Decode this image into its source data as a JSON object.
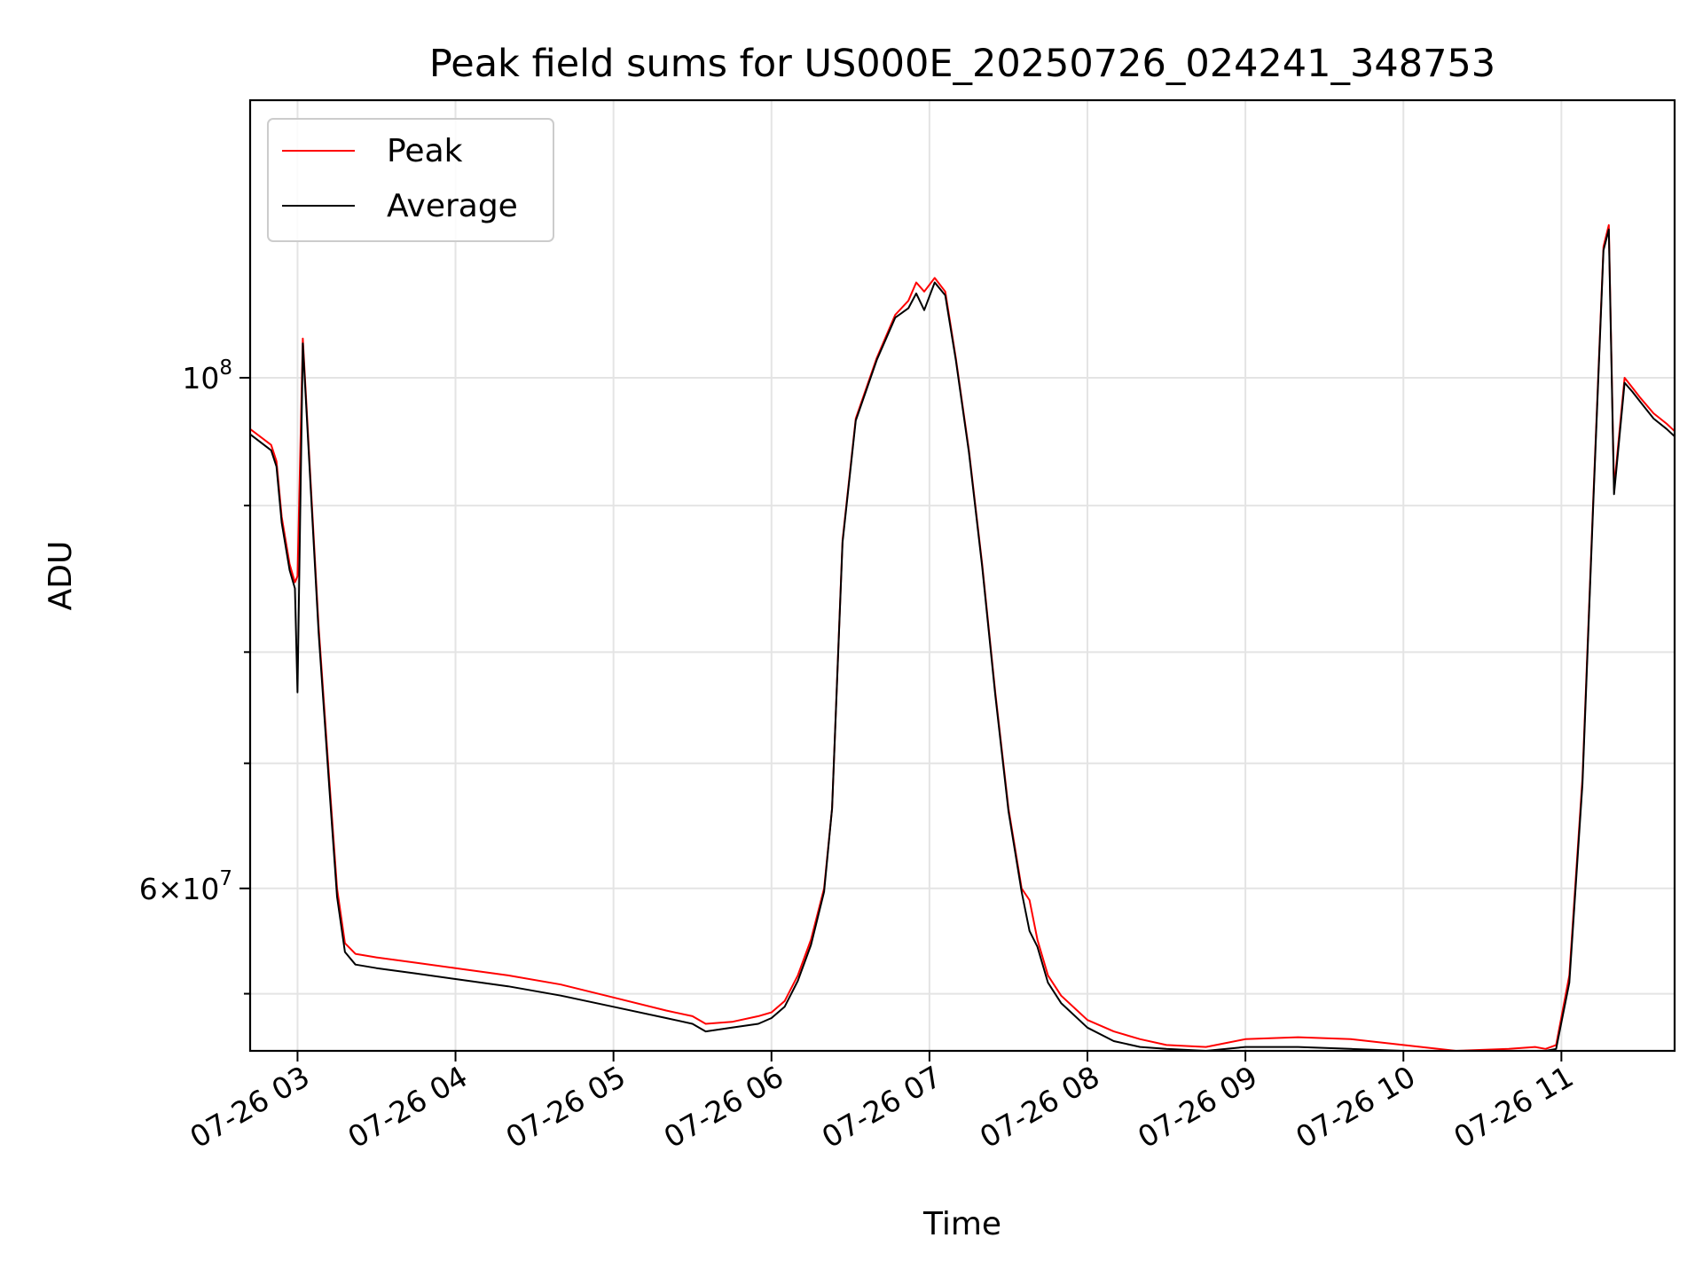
{
  "chart_data": {
    "type": "line",
    "title": "Peak field sums for US000E_20250726_024241_348753",
    "xlabel": "Time",
    "ylabel": "ADU",
    "x_scale": "time",
    "y_scale": "log",
    "xlim": [
      "2025-07-26 02:42",
      "2025-07-26 11:43"
    ],
    "ylim": [
      51000000,
      132000000
    ],
    "x_ticks": [
      "07-26 03",
      "07-26 04",
      "07-26 05",
      "07-26 06",
      "07-26 07",
      "07-26 08",
      "07-26 09",
      "07-26 10",
      "07-26 11"
    ],
    "x_tick_times": [
      "2025-07-26 03:00",
      "2025-07-26 04:00",
      "2025-07-26 05:00",
      "2025-07-26 06:00",
      "2025-07-26 07:00",
      "2025-07-26 08:00",
      "2025-07-26 09:00",
      "2025-07-26 10:00",
      "2025-07-26 11:00"
    ],
    "y_major_ticks": [
      {
        "value": 100000000,
        "label_base": "10",
        "label_exp": "8"
      },
      {
        "value": 60000000,
        "label_base": "6×10",
        "label_exp": "7"
      }
    ],
    "y_minor_ticks": [
      54000000,
      68000000,
      76000000,
      88000000
    ],
    "grid": true,
    "legend_position": "upper-left",
    "series": [
      {
        "name": "Peak",
        "color": "#ff0000",
        "x": [
          "2025-07-26 02:42",
          "2025-07-26 02:50",
          "2025-07-26 02:52",
          "2025-07-26 02:54",
          "2025-07-26 02:57",
          "2025-07-26 02:59",
          "2025-07-26 03:00",
          "2025-07-26 03:02",
          "2025-07-26 03:05",
          "2025-07-26 03:08",
          "2025-07-26 03:12",
          "2025-07-26 03:15",
          "2025-07-26 03:18",
          "2025-07-26 03:22",
          "2025-07-26 03:30",
          "2025-07-26 03:45",
          "2025-07-26 04:00",
          "2025-07-26 04:20",
          "2025-07-26 04:40",
          "2025-07-26 05:00",
          "2025-07-26 05:20",
          "2025-07-26 05:30",
          "2025-07-26 05:35",
          "2025-07-26 05:45",
          "2025-07-26 05:55",
          "2025-07-26 06:00",
          "2025-07-26 06:05",
          "2025-07-26 06:10",
          "2025-07-26 06:15",
          "2025-07-26 06:20",
          "2025-07-26 06:23",
          "2025-07-26 06:27",
          "2025-07-26 06:32",
          "2025-07-26 06:40",
          "2025-07-26 06:47",
          "2025-07-26 06:52",
          "2025-07-26 06:55",
          "2025-07-26 06:58",
          "2025-07-26 07:02",
          "2025-07-26 07:06",
          "2025-07-26 07:10",
          "2025-07-26 07:15",
          "2025-07-26 07:20",
          "2025-07-26 07:25",
          "2025-07-26 07:30",
          "2025-07-26 07:35",
          "2025-07-26 07:38",
          "2025-07-26 07:41",
          "2025-07-26 07:45",
          "2025-07-26 07:50",
          "2025-07-26 08:00",
          "2025-07-26 08:10",
          "2025-07-26 08:20",
          "2025-07-26 08:30",
          "2025-07-26 08:45",
          "2025-07-26 09:00",
          "2025-07-26 09:20",
          "2025-07-26 09:40",
          "2025-07-26 10:00",
          "2025-07-26 10:20",
          "2025-07-26 10:40",
          "2025-07-26 10:50",
          "2025-07-26 10:54",
          "2025-07-26 10:58",
          "2025-07-26 11:03",
          "2025-07-26 11:08",
          "2025-07-26 11:12",
          "2025-07-26 11:16",
          "2025-07-26 11:18",
          "2025-07-26 11:20",
          "2025-07-26 11:24",
          "2025-07-26 11:27",
          "2025-07-26 11:30",
          "2025-07-26 11:35",
          "2025-07-26 11:40",
          "2025-07-26 11:43"
        ],
        "values": [
          95000000,
          93500000,
          92000000,
          87000000,
          83000000,
          81500000,
          82000000,
          104000000,
          90000000,
          78000000,
          67000000,
          60000000,
          56800000,
          56200000,
          56000000,
          55700000,
          55400000,
          55000000,
          54500000,
          53800000,
          53100000,
          52800000,
          52400000,
          52500000,
          52800000,
          53000000,
          53600000,
          55000000,
          57000000,
          60000000,
          65000000,
          85000000,
          96000000,
          102000000,
          106500000,
          108000000,
          110000000,
          109000000,
          110500000,
          109000000,
          102000000,
          93000000,
          83000000,
          73000000,
          65000000,
          60000000,
          59300000,
          57000000,
          55000000,
          53900000,
          52600000,
          52000000,
          51600000,
          51300000,
          51200000,
          51600000,
          51700000,
          51600000,
          51300000,
          51000000,
          51100000,
          51200000,
          51100000,
          51300000,
          55000000,
          67000000,
          88000000,
          114000000,
          116500000,
          89500000,
          100000000,
          99000000,
          98000000,
          96500000,
          95500000,
          94800000
        ]
      },
      {
        "name": "Average",
        "color": "#000000",
        "x": [
          "2025-07-26 02:42",
          "2025-07-26 02:50",
          "2025-07-26 02:52",
          "2025-07-26 02:54",
          "2025-07-26 02:57",
          "2025-07-26 02:59",
          "2025-07-26 03:00",
          "2025-07-26 03:02",
          "2025-07-26 03:05",
          "2025-07-26 03:08",
          "2025-07-26 03:12",
          "2025-07-26 03:15",
          "2025-07-26 03:18",
          "2025-07-26 03:22",
          "2025-07-26 03:30",
          "2025-07-26 03:45",
          "2025-07-26 04:00",
          "2025-07-26 04:20",
          "2025-07-26 04:40",
          "2025-07-26 05:00",
          "2025-07-26 05:20",
          "2025-07-26 05:30",
          "2025-07-26 05:35",
          "2025-07-26 05:45",
          "2025-07-26 05:55",
          "2025-07-26 06:00",
          "2025-07-26 06:05",
          "2025-07-26 06:10",
          "2025-07-26 06:15",
          "2025-07-26 06:20",
          "2025-07-26 06:23",
          "2025-07-26 06:27",
          "2025-07-26 06:32",
          "2025-07-26 06:40",
          "2025-07-26 06:47",
          "2025-07-26 06:52",
          "2025-07-26 06:55",
          "2025-07-26 06:58",
          "2025-07-26 07:02",
          "2025-07-26 07:06",
          "2025-07-26 07:10",
          "2025-07-26 07:15",
          "2025-07-26 07:20",
          "2025-07-26 07:25",
          "2025-07-26 07:30",
          "2025-07-26 07:35",
          "2025-07-26 07:38",
          "2025-07-26 07:41",
          "2025-07-26 07:45",
          "2025-07-26 07:50",
          "2025-07-26 08:00",
          "2025-07-26 08:10",
          "2025-07-26 08:20",
          "2025-07-26 08:30",
          "2025-07-26 08:45",
          "2025-07-26 09:00",
          "2025-07-26 09:20",
          "2025-07-26 09:40",
          "2025-07-26 10:00",
          "2025-07-26 10:20",
          "2025-07-26 10:40",
          "2025-07-26 10:50",
          "2025-07-26 10:54",
          "2025-07-26 10:58",
          "2025-07-26 11:03",
          "2025-07-26 11:08",
          "2025-07-26 11:12",
          "2025-07-26 11:16",
          "2025-07-26 11:18",
          "2025-07-26 11:20",
          "2025-07-26 11:24",
          "2025-07-26 11:27",
          "2025-07-26 11:30",
          "2025-07-26 11:35",
          "2025-07-26 11:40",
          "2025-07-26 11:43"
        ],
        "values": [
          94500000,
          93000000,
          91500000,
          86500000,
          82500000,
          81000000,
          73000000,
          103500000,
          89500000,
          77500000,
          66500000,
          59500000,
          56300000,
          55600000,
          55400000,
          55100000,
          54800000,
          54400000,
          53900000,
          53300000,
          52700000,
          52400000,
          52000000,
          52200000,
          52400000,
          52700000,
          53300000,
          54700000,
          56700000,
          59800000,
          65000000,
          84800000,
          95800000,
          101800000,
          106200000,
          107200000,
          108800000,
          107000000,
          110000000,
          108600000,
          101800000,
          92800000,
          82800000,
          72800000,
          64800000,
          59800000,
          57500000,
          56600000,
          54600000,
          53500000,
          52200000,
          51500000,
          51200000,
          51100000,
          51000000,
          51200000,
          51200000,
          51100000,
          51000000,
          50900000,
          50900000,
          50900000,
          51000000,
          51100000,
          54600000,
          66600000,
          87600000,
          113600000,
          116000000,
          89000000,
          99500000,
          98600000,
          97600000,
          96000000,
          95000000,
          94300000
        ]
      }
    ]
  }
}
